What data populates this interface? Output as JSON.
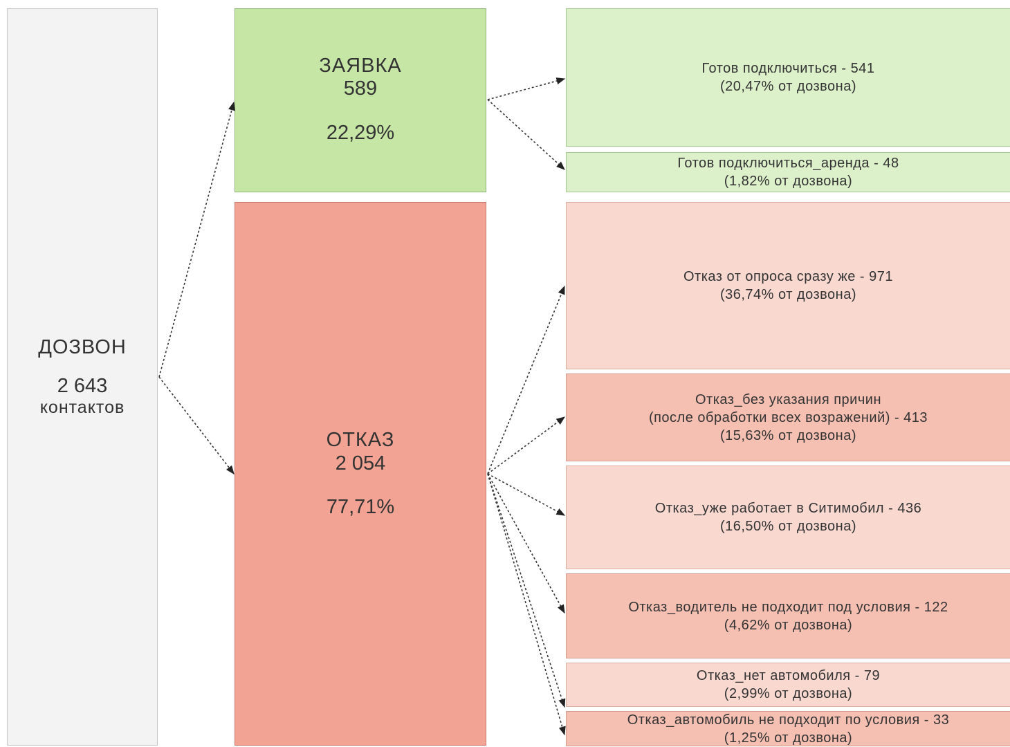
{
  "root": {
    "name": "ДОЗВОН",
    "count": "2 643",
    "unit": "контактов"
  },
  "accept": {
    "name": "ЗАЯВКА",
    "count": "589",
    "percent": "22,29%"
  },
  "reject": {
    "name": "ОТКАЗ",
    "count": "2 054",
    "percent": "77,71%"
  },
  "accept_items": [
    {
      "label": "Готов подключиться - 541",
      "share": "(20,47% от дозвона)"
    },
    {
      "label": "Готов подключиться_аренда - 48",
      "share": "(1,82% от дозвона)"
    }
  ],
  "reject_items": [
    {
      "label": "Отказ от опроса сразу же - 971",
      "share": "(36,74% от дозвона)"
    },
    {
      "label": "Отказ_без указания причин\n(после обработки всех возражений) - 413",
      "share": "(15,63% от дозвона)"
    },
    {
      "label": "Отказ_уже работает в Ситимобил - 436",
      "share": "(16,50% от дозвона)"
    },
    {
      "label": "Отказ_водитель не подходит под условия - 122",
      "share": "(4,62% от дозвона)"
    },
    {
      "label": "Отказ_нет автомобиля - 79",
      "share": "(2,99% от дозвона)"
    },
    {
      "label": "Отказ_автомобиль не подходит по условия - 33",
      "share": "(1,25% от дозвона)"
    }
  ],
  "colors": {
    "accept": "#c6e6a6",
    "reject": "#f3a393",
    "accept_leaf": "#dcf0ca",
    "reject_leaf_light": "#f9d8d0",
    "reject_leaf_dark": "#f5bfb2"
  }
}
